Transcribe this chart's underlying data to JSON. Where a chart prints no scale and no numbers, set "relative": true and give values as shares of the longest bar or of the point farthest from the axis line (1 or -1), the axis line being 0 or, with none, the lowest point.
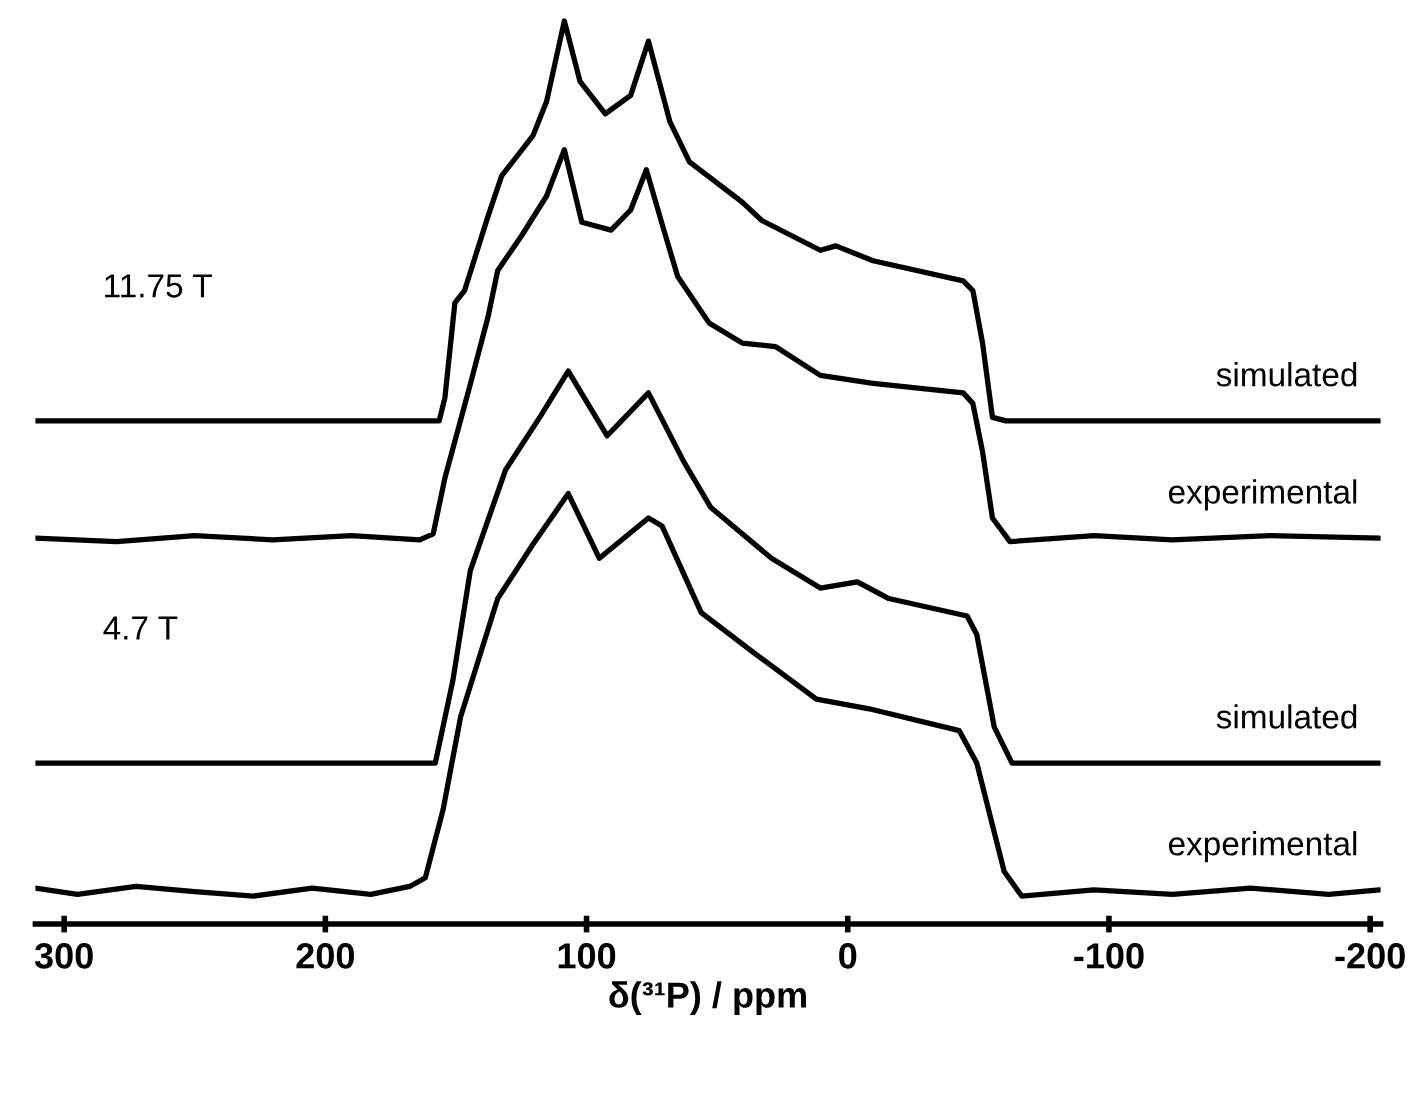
{
  "chart_data": {
    "type": "line",
    "relative": true,
    "xlabel": "δ(³¹P) / ppm",
    "xlim": [
      311,
      -204
    ],
    "xticks": [
      300,
      200,
      100,
      0,
      -100,
      -200
    ],
    "tick_labels": "x",
    "grid": false,
    "legend": false,
    "marker": "none",
    "line_style": "solid",
    "annotations": [
      "11.75 T",
      "4.7 T"
    ],
    "series": [
      {
        "name": "simulated",
        "color": "#000000",
        "x": [
          311,
          156.4,
          154.2,
          150.4,
          146.7,
          137.7,
          132.5,
          120.5,
          115.3,
          108.5,
          102.5,
          92.8,
          83.1,
          76.3,
          68.1,
          60.6,
          40.4,
          32.9,
          10.5,
          4.5,
          -9.7,
          -44.2,
          -47.9,
          -51.6,
          -55.4,
          -60.6,
          -203.6
        ],
        "values": [
          0.543,
          0.543,
          0.57,
          0.678,
          0.692,
          0.777,
          0.823,
          0.869,
          0.908,
          1.0,
          0.931,
          0.894,
          0.915,
          0.977,
          0.885,
          0.839,
          0.793,
          0.772,
          0.738,
          0.743,
          0.726,
          0.703,
          0.692,
          0.632,
          0.547,
          0.543,
          0.543
        ]
      },
      {
        "name": "experimental",
        "color": "#000000",
        "x": [
          311,
          279.9,
          250.0,
          220.1,
          190.1,
          163.9,
          158.7,
          154.2,
          145.2,
          137.7,
          134.0,
          125.0,
          115.3,
          108.5,
          101.8,
          90.6,
          83.1,
          77.1,
          70.4,
          65.1,
          53.1,
          40.4,
          27.7,
          10.5,
          -9.7,
          -44.2,
          -47.9,
          -51.6,
          -55.4,
          -62.1,
          -94.3,
          -124.3,
          -161.7,
          -203.6
        ],
        "values": [
          0.409,
          0.405,
          0.412,
          0.407,
          0.412,
          0.407,
          0.414,
          0.478,
          0.577,
          0.662,
          0.715,
          0.754,
          0.8,
          0.853,
          0.77,
          0.761,
          0.784,
          0.83,
          0.761,
          0.708,
          0.655,
          0.632,
          0.628,
          0.595,
          0.586,
          0.575,
          0.563,
          0.508,
          0.432,
          0.405,
          0.412,
          0.407,
          0.412,
          0.409
        ]
      },
      {
        "name": "simulated",
        "color": "#000000",
        "x": [
          311,
          157.9,
          151.2,
          144.5,
          131.0,
          117.5,
          107.0,
          92.1,
          76.3,
          62.9,
          52.4,
          29.2,
          10.5,
          -3.7,
          -15.7,
          -45.7,
          -49.4,
          -56.1,
          -62.9,
          -203.6
        ],
        "values": [
          0.152,
          0.152,
          0.246,
          0.372,
          0.487,
          0.549,
          0.6,
          0.526,
          0.575,
          0.497,
          0.444,
          0.386,
          0.352,
          0.359,
          0.34,
          0.32,
          0.299,
          0.193,
          0.152,
          0.152
        ]
      },
      {
        "name": "experimental",
        "color": "#000000",
        "x": [
          311,
          294.9,
          272.5,
          250.0,
          227.5,
          205.1,
          182.6,
          167.7,
          161.7,
          154.9,
          148.2,
          134.0,
          120.5,
          107.0,
          95.1,
          76.3,
          71.1,
          56.1,
          35.9,
          12.0,
          -8.2,
          -42.7,
          -49.4,
          -59.9,
          -66.6,
          -94.3,
          -124.3,
          -154.2,
          -184.1,
          -203.6
        ],
        "values": [
          0.009,
          0.002,
          0.011,
          0.005,
          0.0,
          0.009,
          0.002,
          0.011,
          0.021,
          0.099,
          0.205,
          0.34,
          0.402,
          0.46,
          0.386,
          0.432,
          0.423,
          0.324,
          0.278,
          0.225,
          0.214,
          0.189,
          0.152,
          0.028,
          0.0,
          0.007,
          0.002,
          0.009,
          0.002,
          0.007
        ]
      }
    ]
  }
}
